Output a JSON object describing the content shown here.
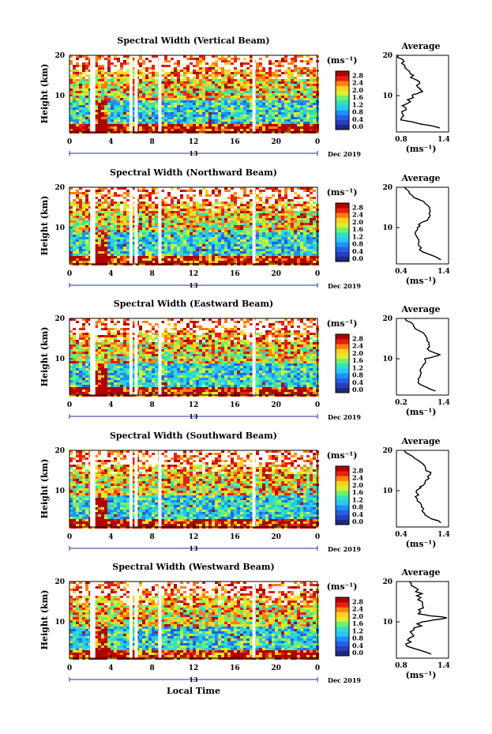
{
  "figure": {
    "date_label": "Dec 2019",
    "xlabel": "Local Time",
    "unit_label": "(ms⁻¹)",
    "avg_title": "Average",
    "avg_xlabel": "(ms⁻¹)",
    "ylabel": "Height (km)"
  },
  "colorbar_ticks": [
    "0.0",
    "0.4",
    "0.8",
    "1.2",
    "1.6",
    "2.0",
    "2.4",
    "2.8"
  ],
  "colorbar_colors": [
    "#1a2a80",
    "#2a3cc0",
    "#2560e0",
    "#1e90ff",
    "#28c8f0",
    "#30e0c0",
    "#70f070",
    "#d8f030",
    "#ffd020",
    "#ff8010",
    "#e82010",
    "#b00000"
  ],
  "time_ticks": [
    "0",
    "4",
    "8",
    "12",
    "16",
    "20",
    "0"
  ],
  "time_sub_label": "13",
  "height_ticks": [
    "20",
    "10"
  ],
  "chart_data": [
    {
      "type": "heatmap",
      "title": "Spectral Width (Vertical Beam)",
      "xlabel": "Local Time",
      "ylabel": "Height (km)",
      "xlim": [
        0,
        24
      ],
      "ylim": [
        1,
        20
      ],
      "clim": [
        0.0,
        2.8
      ],
      "data_gaps_hours": [
        [
          2.0,
          2.5
        ],
        [
          5.8,
          6.1
        ],
        [
          6.3,
          6.6
        ],
        [
          8.6,
          8.9
        ],
        [
          17.7,
          18.0
        ]
      ],
      "average_profile": {
        "xlim": [
          0.8,
          1.4
        ],
        "xticks": [
          "0.8",
          "1.4"
        ],
        "height_km": [
          20,
          18,
          16,
          14,
          12,
          11,
          10,
          8,
          6,
          4,
          2
        ],
        "value": [
          0.82,
          0.86,
          0.95,
          1.02,
          1.05,
          1.1,
          0.98,
          0.92,
          0.86,
          0.85,
          1.3
        ]
      }
    },
    {
      "type": "heatmap",
      "title": "Spectral Width (Northward Beam)",
      "xlabel": "Local Time",
      "ylabel": "Height (km)",
      "xlim": [
        0,
        24
      ],
      "ylim": [
        1,
        20
      ],
      "clim": [
        0.0,
        2.8
      ],
      "data_gaps_hours": [
        [
          2.0,
          2.5
        ],
        [
          5.8,
          6.1
        ],
        [
          6.3,
          6.6
        ],
        [
          8.6,
          8.9
        ],
        [
          17.7,
          18.0
        ]
      ],
      "average_profile": {
        "xlim": [
          0.4,
          1.4
        ],
        "xticks": [
          "0.4",
          "1.4"
        ],
        "height_km": [
          20,
          18,
          16,
          14,
          12,
          11,
          10,
          8,
          6,
          4,
          2
        ],
        "value": [
          0.55,
          0.7,
          0.95,
          1.05,
          1.0,
          0.85,
          0.8,
          0.78,
          0.82,
          0.9,
          1.25
        ]
      }
    },
    {
      "type": "heatmap",
      "title": "Spectral Width (Eastward Beam)",
      "xlabel": "Local Time",
      "ylabel": "Height (km)",
      "xlim": [
        0,
        24
      ],
      "ylim": [
        1,
        20
      ],
      "clim": [
        0.0,
        2.8
      ],
      "data_gaps_hours": [
        [
          2.0,
          2.5
        ],
        [
          5.8,
          6.1
        ],
        [
          6.3,
          6.6
        ],
        [
          8.6,
          8.9
        ],
        [
          17.7,
          18.0
        ]
      ],
      "average_profile": {
        "xlim": [
          0.2,
          1.4
        ],
        "xticks": [
          "0.2",
          "1.4"
        ],
        "height_km": [
          20,
          18,
          16,
          14,
          12,
          11,
          10,
          8,
          6,
          4,
          2
        ],
        "value": [
          0.4,
          0.6,
          0.85,
          0.95,
          0.95,
          1.2,
          0.85,
          0.8,
          0.75,
          0.7,
          1.1
        ]
      }
    },
    {
      "type": "heatmap",
      "title": "Spectral Width (Southward Beam)",
      "xlabel": "Local Time",
      "ylabel": "Height (km)",
      "xlim": [
        0,
        24
      ],
      "ylim": [
        1,
        20
      ],
      "clim": [
        0.0,
        2.8
      ],
      "data_gaps_hours": [
        [
          2.0,
          2.5
        ],
        [
          5.8,
          6.1
        ],
        [
          6.3,
          6.6
        ],
        [
          8.6,
          8.9
        ],
        [
          17.7,
          18.0
        ]
      ],
      "average_profile": {
        "xlim": [
          0.4,
          1.4
        ],
        "xticks": [
          "0.4",
          "1.4"
        ],
        "height_km": [
          20,
          18,
          16,
          14,
          12,
          11,
          10,
          8,
          6,
          4,
          2
        ],
        "value": [
          0.55,
          0.75,
          0.95,
          1.05,
          0.95,
          0.85,
          0.78,
          0.8,
          0.88,
          0.95,
          1.25
        ]
      }
    },
    {
      "type": "heatmap",
      "title": "Spectral Width (Westward Beam)",
      "xlabel": "Local Time",
      "ylabel": "Height (km)",
      "xlim": [
        0,
        24
      ],
      "ylim": [
        1,
        20
      ],
      "clim": [
        0.0,
        2.8
      ],
      "data_gaps_hours": [
        [
          2.0,
          2.5
        ],
        [
          5.8,
          6.1
        ],
        [
          6.3,
          6.6
        ],
        [
          8.6,
          8.9
        ],
        [
          17.7,
          18.0
        ]
      ],
      "average_profile": {
        "xlim": [
          0.8,
          1.4
        ],
        "xticks": [
          "0.8",
          "1.4"
        ],
        "height_km": [
          20,
          18,
          16,
          14,
          12,
          11,
          10,
          8,
          6,
          4,
          2
        ],
        "value": [
          0.95,
          1.05,
          1.08,
          1.1,
          1.05,
          1.38,
          1.1,
          1.0,
          0.95,
          0.92,
          1.2
        ]
      }
    }
  ]
}
